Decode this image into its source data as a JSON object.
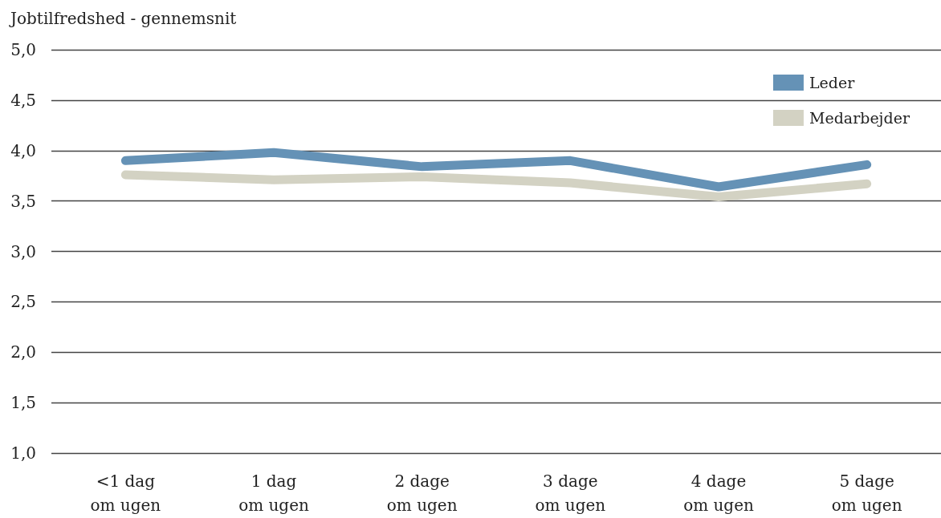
{
  "chart_data": {
    "type": "line",
    "ylabel": "Jobtilfredshed - gennemsnit",
    "categories": [
      "<1 dag\nom ugen",
      "1 dag\nom ugen",
      "2 dage\nom ugen",
      "3 dage\nom ugen",
      "4 dage\nom ugen",
      "5 dage\nom ugen"
    ],
    "series": [
      {
        "name": "Leder",
        "color": "#6592b6",
        "values": [
          3.9,
          3.98,
          3.84,
          3.9,
          3.64,
          3.86
        ]
      },
      {
        "name": "Medarbejder",
        "color": "#d3d2c3",
        "values": [
          3.76,
          3.71,
          3.74,
          3.68,
          3.54,
          3.67
        ]
      }
    ],
    "ylim": [
      1,
      5
    ],
    "yticks": [
      {
        "value": 1,
        "label": "1,0"
      },
      {
        "value": 1.5,
        "label": "1,5"
      },
      {
        "value": 2,
        "label": "2,0"
      },
      {
        "value": 2.5,
        "label": "2,5"
      },
      {
        "value": 3,
        "label": "3,0"
      },
      {
        "value": 3.5,
        "label": "3,5"
      },
      {
        "value": 4,
        "label": "4,0"
      },
      {
        "value": 4.5,
        "label": "4,5"
      },
      {
        "value": 5,
        "label": "5,0"
      }
    ],
    "grid": "y",
    "legend": "top right",
    "marker": "none",
    "line_style": "solid"
  }
}
